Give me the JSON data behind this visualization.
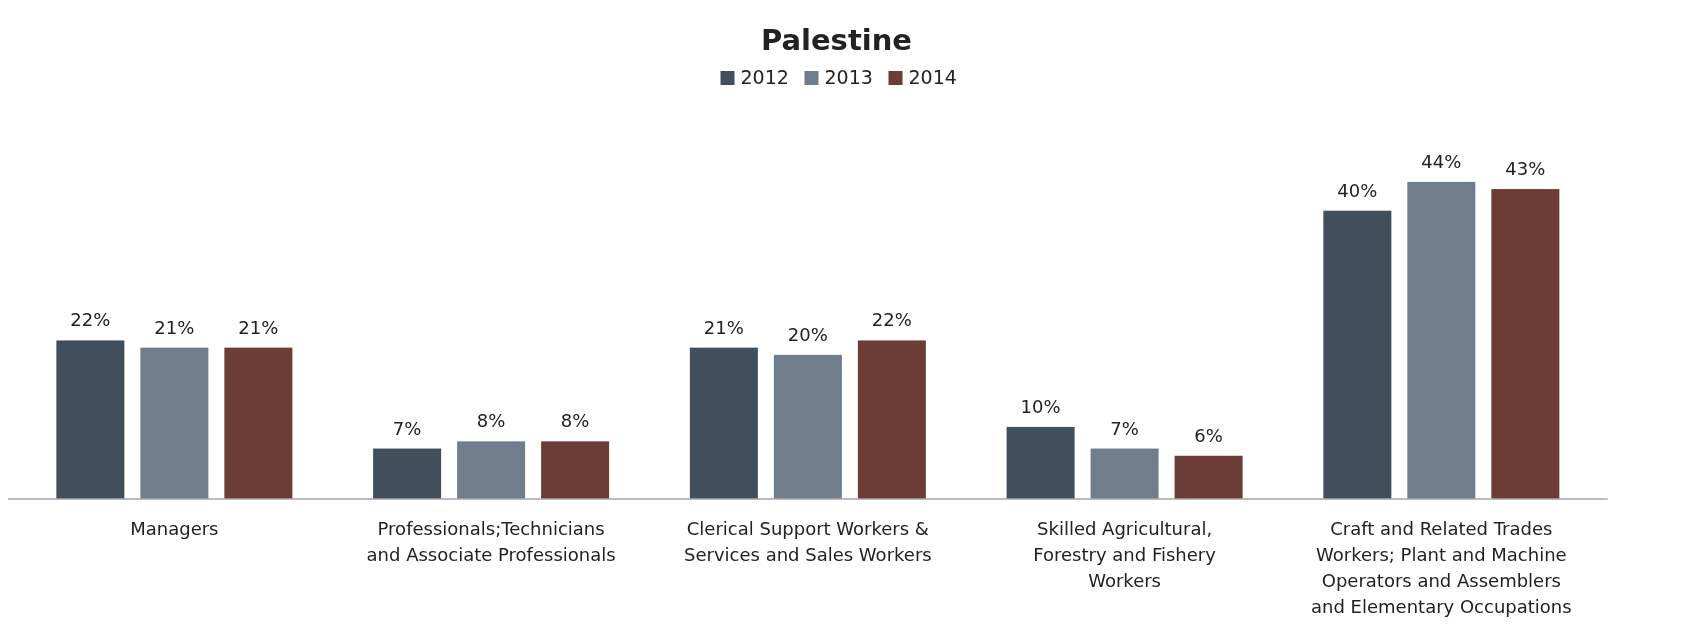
{
  "chart_data": {
    "type": "bar",
    "title": "Palestine",
    "categories": [
      "Managers",
      "Professionals;Technicians and Associate Professionals",
      "Clerical Support Workers & Services and Sales Workers",
      "Skilled Agricultural, Forestry and Fishery Workers",
      "Craft and Related Trades Workers; Plant and Machine Operators and Assemblers and Elementary Occupations"
    ],
    "series": [
      {
        "name": "2012",
        "color": "#414f5c",
        "values": [
          22,
          7,
          21,
          10,
          40
        ],
        "value_labels": [
          "22%",
          "7%",
          "21%",
          "10%",
          "40%"
        ]
      },
      {
        "name": "2013",
        "color": "#6f7d8c",
        "values": [
          21,
          8,
          20,
          7,
          44
        ],
        "value_labels": [
          "21%",
          "8%",
          "20%",
          "7%",
          "44%"
        ]
      },
      {
        "name": "2014",
        "color": "#6b3d35",
        "values": [
          21,
          8,
          22,
          6,
          43
        ],
        "value_labels": [
          "21%",
          "8%",
          "22%",
          "6%",
          "43%"
        ]
      }
    ],
    "legend": "top",
    "tick_labels": "x"
  }
}
